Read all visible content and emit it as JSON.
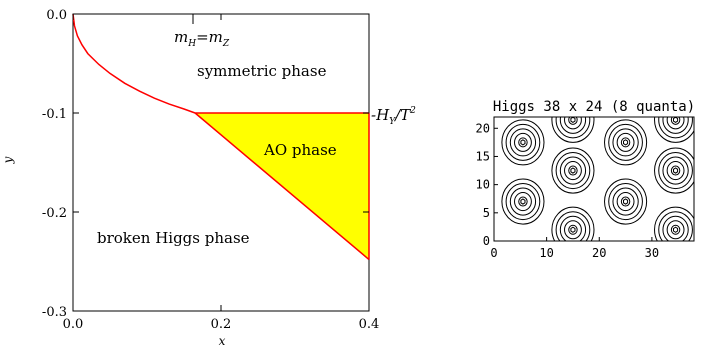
{
  "chart_data": [
    {
      "type": "area",
      "title": "",
      "xlabel": "x",
      "ylabel": "y",
      "xlim": [
        0.0,
        0.4
      ],
      "ylim": [
        -0.3,
        0.0
      ],
      "x_ticks": [
        0.0,
        0.2,
        0.4
      ],
      "x_tick_labels": [
        "0.0",
        "0.2",
        "0.4"
      ],
      "y_ticks": [
        0.0,
        -0.1,
        -0.2,
        -0.3
      ],
      "y_tick_labels": [
        "0.0",
        "-0.1",
        "-0.2",
        "-0.3"
      ],
      "grid": false,
      "boundary_curve": {
        "x": [
          0.0,
          0.002,
          0.006,
          0.012,
          0.02,
          0.035,
          0.05,
          0.07,
          0.09,
          0.11,
          0.13,
          0.15,
          0.165
        ],
        "y": [
          0.0,
          -0.012,
          -0.022,
          -0.031,
          -0.04,
          -0.051,
          -0.06,
          -0.07,
          -0.078,
          -0.085,
          -0.091,
          -0.096,
          -0.1
        ]
      },
      "ao_region": {
        "x": [
          0.165,
          0.4,
          0.4
        ],
        "y": [
          -0.1,
          -0.1,
          -0.248
        ],
        "fill": "#ffff00"
      },
      "line_color": "#ff0000",
      "annotations": {
        "mass_label_m": "m",
        "mass_label_sub_h": "H",
        "mass_label_eq": "=m",
        "mass_label_sub_z": "Z",
        "symmetric_phase": "symmetric phase",
        "ao_phase": "AO phase",
        "broken_phase": "broken Higgs phase",
        "hy_minus": "-H",
        "hy_sub": "Y",
        "hy_slash": "/T",
        "hy_sup": "2"
      }
    },
    {
      "type": "heatmap",
      "title": "Higgs 38 x 24 (8 quanta)",
      "xlim": [
        0,
        38
      ],
      "ylim": [
        0,
        22
      ],
      "x_ticks": [
        0,
        10,
        20,
        30
      ],
      "x_tick_labels": [
        "0",
        "10",
        "20",
        "30"
      ],
      "y_ticks": [
        0,
        5,
        10,
        15,
        20
      ],
      "y_tick_labels": [
        "0",
        "5",
        "10",
        "15",
        "20"
      ],
      "centers": [
        {
          "x": 5.5,
          "y": 17.5
        },
        {
          "x": 15,
          "y": 21.5
        },
        {
          "x": 25,
          "y": 17.5
        },
        {
          "x": 34.5,
          "y": 21.5
        },
        {
          "x": 5.5,
          "y": 7
        },
        {
          "x": 15,
          "y": 12.5
        },
        {
          "x": 25,
          "y": 7
        },
        {
          "x": 34.5,
          "y": 12.5
        },
        {
          "x": 15,
          "y": 2
        },
        {
          "x": 34.5,
          "y": 2
        }
      ],
      "ring_radii": [
        0.8,
        1.6,
        2.4,
        3.2,
        4.0
      ],
      "line_color": "#000000"
    }
  ]
}
